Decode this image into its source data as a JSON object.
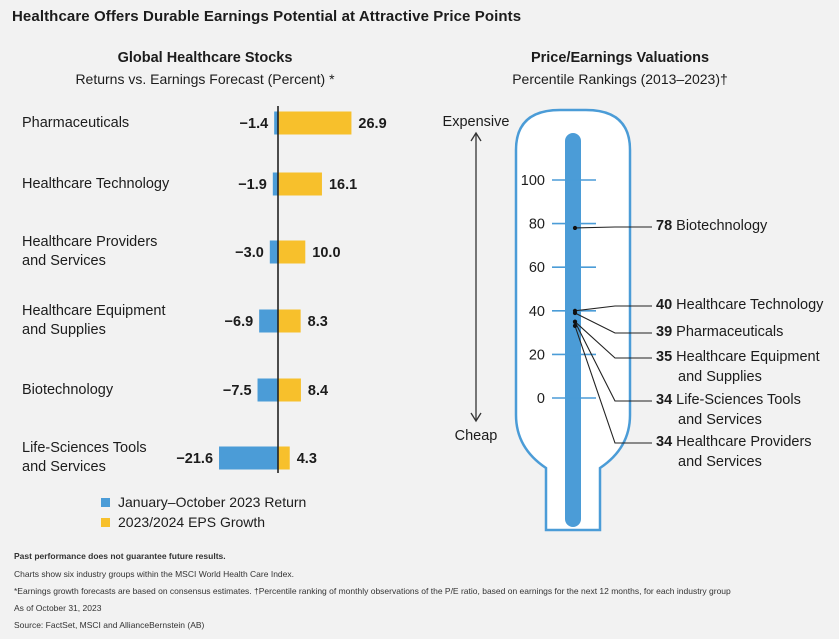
{
  "title": "Healthcare Offers Durable Earnings Potential at Attractive Price Points",
  "colors": {
    "return": "#4b9cd7",
    "eps": "#f7c02c",
    "axis": "#222222",
    "background": "#f2f2f2"
  },
  "chart_data": [
    {
      "type": "bar",
      "orientation": "horizontal",
      "title": "Global Healthcare Stocks",
      "subtitle": "Returns vs. Earnings Forecast (Percent) *",
      "categories": [
        [
          "Pharmaceuticals"
        ],
        [
          "Healthcare Technology"
        ],
        [
          "Healthcare Providers",
          "and Services"
        ],
        [
          "Healthcare Equipment",
          "and Supplies"
        ],
        [
          "Biotechnology"
        ],
        [
          "Life-Sciences Tools",
          "and Services"
        ]
      ],
      "series": [
        {
          "name": "January–October 2023 Return",
          "values": [
            -1.4,
            -1.9,
            -3.0,
            -6.9,
            -7.5,
            -21.6
          ],
          "labels": [
            "−1.4",
            "−1.9",
            "−3.0",
            "−6.9",
            "−7.5",
            "−21.6"
          ]
        },
        {
          "name": "2023/2024 EPS Growth",
          "values": [
            26.9,
            16.1,
            10.0,
            8.3,
            8.4,
            4.3
          ],
          "labels": [
            "26.9",
            "16.1",
            "10.0",
            "8.3",
            "8.4",
            "4.3"
          ]
        }
      ]
    },
    {
      "type": "scatter",
      "style": "thermometer",
      "title": "Price/Earnings Valuations",
      "subtitle": "Percentile Rankings (2013–2023)†",
      "ylim": [
        0,
        100
      ],
      "ticks": [
        0,
        20,
        40,
        60,
        80,
        100
      ],
      "top_label": "Expensive",
      "bottom_label": "Cheap",
      "points": [
        {
          "value": 78,
          "lines": [
            "Biotechnology"
          ]
        },
        {
          "value": 40,
          "lines": [
            "Healthcare Technology"
          ]
        },
        {
          "value": 39,
          "lines": [
            "Pharmaceuticals"
          ]
        },
        {
          "value": 35,
          "lines": [
            "Healthcare Equipment",
            "and Supplies"
          ]
        },
        {
          "value": 34,
          "lines": [
            "Life-Sciences Tools",
            "and Services"
          ]
        },
        {
          "value": 34,
          "lines": [
            "Healthcare Providers",
            "and Services"
          ]
        }
      ]
    }
  ],
  "legend": [
    {
      "label": "January–October 2023 Return",
      "color": "#4b9cd7"
    },
    {
      "label": "2023/2024 EPS Growth",
      "color": "#f7c02c"
    }
  ],
  "footnotes": {
    "disclaimer": "Past performance does not guarantee future results.",
    "note1": "Charts show six industry groups within the MSCI World Health Care Index.",
    "note2": "*Earnings growth forecasts are based on consensus estimates. †Percentile ranking of monthly observations of the P/E ratio, based on earnings for the next 12 months, for each industry group",
    "date": "As of October 31, 2023",
    "source": "Source:  FactSet, MSCI and AllianceBernstein (AB)"
  }
}
